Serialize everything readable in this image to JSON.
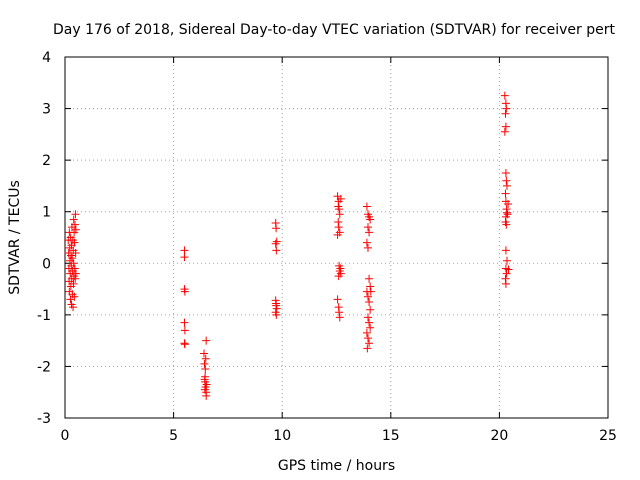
{
  "chart_data": {
    "type": "scatter",
    "title": "Day 176 of 2018, Sidereal Day-to-day VTEC variation (SDTVAR) for receiver pert",
    "xlabel": "GPS time / hours",
    "ylabel": "SDTVAR / TECUs",
    "xlim": [
      0,
      25
    ],
    "ylim": [
      -3,
      4
    ],
    "xticks": [
      0,
      5,
      10,
      15,
      20,
      25
    ],
    "yticks": [
      -3,
      -2,
      -1,
      0,
      1,
      2,
      3,
      4
    ],
    "grid": true,
    "marker": "+",
    "series": [
      {
        "name": "SDTVAR",
        "color": "#ff0000",
        "points": [
          [
            0.15,
            0.45
          ],
          [
            0.17,
            0.2
          ],
          [
            0.18,
            -0.1
          ],
          [
            0.19,
            -0.35
          ],
          [
            0.2,
            0.6
          ],
          [
            0.2,
            -0.55
          ],
          [
            0.22,
            0.3
          ],
          [
            0.23,
            0.05
          ],
          [
            0.24,
            -0.2
          ],
          [
            0.25,
            -0.7
          ],
          [
            0.26,
            0.5
          ],
          [
            0.27,
            -0.45
          ],
          [
            0.28,
            0.15
          ],
          [
            0.29,
            -0.05
          ],
          [
            0.3,
            0.35
          ],
          [
            0.3,
            -0.8
          ],
          [
            0.31,
            -0.3
          ],
          [
            0.32,
            0.7
          ],
          [
            0.33,
            0.1
          ],
          [
            0.34,
            -0.6
          ],
          [
            0.35,
            -0.15
          ],
          [
            0.36,
            0.45
          ],
          [
            0.37,
            -0.85
          ],
          [
            0.38,
            0.25
          ],
          [
            0.39,
            -0.4
          ],
          [
            0.4,
            0.85
          ],
          [
            0.4,
            0.0
          ],
          [
            0.41,
            -0.25
          ],
          [
            0.42,
            0.6
          ],
          [
            0.43,
            -0.65
          ],
          [
            0.44,
            0.4
          ],
          [
            0.45,
            -0.1
          ],
          [
            0.46,
            0.75
          ],
          [
            0.47,
            -0.3
          ],
          [
            0.48,
            0.95
          ],
          [
            0.49,
            0.2
          ],
          [
            0.5,
            -0.2
          ],
          [
            0.5,
            0.65
          ],
          [
            5.5,
            0.25
          ],
          [
            5.5,
            0.12
          ],
          [
            5.5,
            -0.5
          ],
          [
            5.52,
            -0.55
          ],
          [
            5.5,
            -1.15
          ],
          [
            5.52,
            -1.3
          ],
          [
            5.5,
            -1.55
          ],
          [
            5.52,
            -1.57
          ],
          [
            6.4,
            -1.75
          ],
          [
            6.42,
            -1.95
          ],
          [
            6.45,
            -2.2
          ],
          [
            6.45,
            -2.3
          ],
          [
            6.47,
            -2.4
          ],
          [
            6.5,
            -2.5
          ],
          [
            6.5,
            -2.57
          ],
          [
            6.43,
            -2.25
          ],
          [
            6.48,
            -1.85
          ],
          [
            6.5,
            -1.5
          ],
          [
            6.52,
            -2.35
          ],
          [
            6.46,
            -2.05
          ],
          [
            6.44,
            -2.45
          ],
          [
            9.7,
            0.78
          ],
          [
            9.72,
            0.68
          ],
          [
            9.75,
            0.42
          ],
          [
            9.7,
            0.38
          ],
          [
            9.73,
            0.25
          ],
          [
            9.7,
            -0.72
          ],
          [
            9.72,
            -0.78
          ],
          [
            9.75,
            -0.88
          ],
          [
            9.7,
            -0.95
          ],
          [
            9.73,
            -1.0
          ],
          [
            9.72,
            -0.82
          ],
          [
            12.55,
            1.3
          ],
          [
            12.6,
            1.2
          ],
          [
            12.62,
            1.05
          ],
          [
            12.65,
            0.95
          ],
          [
            12.58,
            0.8
          ],
          [
            12.6,
            0.7
          ],
          [
            12.65,
            0.6
          ],
          [
            12.55,
            0.55
          ],
          [
            12.7,
            1.25
          ],
          [
            12.62,
            -0.05
          ],
          [
            12.65,
            -0.15
          ],
          [
            12.6,
            -0.25
          ],
          [
            12.68,
            -0.1
          ],
          [
            12.55,
            -0.7
          ],
          [
            12.6,
            -0.85
          ],
          [
            12.62,
            -0.95
          ],
          [
            12.65,
            -1.05
          ],
          [
            12.7,
            -0.2
          ],
          [
            12.58,
            1.1
          ],
          [
            13.9,
            1.1
          ],
          [
            13.95,
            0.95
          ],
          [
            14.0,
            0.9
          ],
          [
            14.05,
            0.85
          ],
          [
            13.95,
            0.7
          ],
          [
            14.0,
            0.6
          ],
          [
            13.9,
            0.4
          ],
          [
            13.95,
            0.3
          ],
          [
            14.0,
            -0.3
          ],
          [
            14.05,
            -0.45
          ],
          [
            13.9,
            -0.55
          ],
          [
            13.95,
            -0.65
          ],
          [
            14.0,
            -0.75
          ],
          [
            14.05,
            -0.9
          ],
          [
            13.95,
            -1.05
          ],
          [
            14.0,
            -1.15
          ],
          [
            14.05,
            -1.25
          ],
          [
            13.9,
            -1.35
          ],
          [
            13.95,
            -1.45
          ],
          [
            14.0,
            -1.55
          ],
          [
            13.92,
            -1.65
          ],
          [
            14.08,
            -0.55
          ],
          [
            20.25,
            3.25
          ],
          [
            20.3,
            3.1
          ],
          [
            20.32,
            3.0
          ],
          [
            20.28,
            2.9
          ],
          [
            20.3,
            2.65
          ],
          [
            20.25,
            2.55
          ],
          [
            20.3,
            1.75
          ],
          [
            20.32,
            1.6
          ],
          [
            20.35,
            1.5
          ],
          [
            20.28,
            1.35
          ],
          [
            20.3,
            1.2
          ],
          [
            20.33,
            1.05
          ],
          [
            20.35,
            0.98
          ],
          [
            20.3,
            0.9
          ],
          [
            20.28,
            0.8
          ],
          [
            20.32,
            0.75
          ],
          [
            20.3,
            0.25
          ],
          [
            20.35,
            0.05
          ],
          [
            20.3,
            -0.1
          ],
          [
            20.33,
            -0.2
          ],
          [
            20.28,
            -0.3
          ],
          [
            20.3,
            -0.4
          ],
          [
            20.4,
            1.15
          ],
          [
            20.38,
            0.95
          ],
          [
            20.42,
            -0.12
          ]
        ]
      }
    ]
  }
}
